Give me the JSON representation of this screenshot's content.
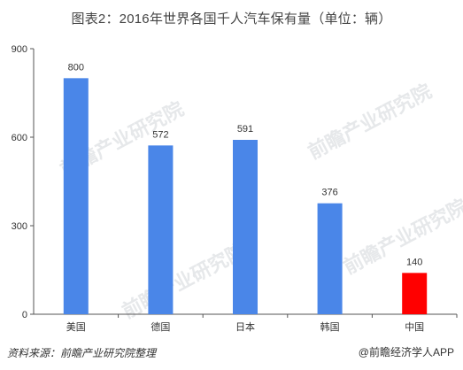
{
  "title": "图表2：2016年世界各国千人汽车保有量（单位：辆）",
  "source": "资料来源：前瞻产业研究院整理",
  "brand": "@前瞻经济学人APP",
  "watermark": "前瞻产业研究院",
  "colors": {
    "bar": "#4a86e8",
    "highlight": "#ff0000",
    "axis": "#555555",
    "grid": "#d9d9d9"
  },
  "chart_data": {
    "type": "bar",
    "categories": [
      "美国",
      "德国",
      "日本",
      "韩国",
      "中国"
    ],
    "values": [
      800,
      572,
      591,
      376,
      140
    ],
    "data_labels": [
      "800",
      "572",
      "591",
      "376",
      "140"
    ],
    "highlight_index": 4,
    "ylim": [
      0,
      900
    ],
    "yticks": [
      0,
      300,
      600,
      900
    ],
    "ytick_labels": [
      "0",
      "300",
      "600",
      "900"
    ],
    "xlabel": "",
    "ylabel": "",
    "grid": false,
    "legend": "none"
  }
}
